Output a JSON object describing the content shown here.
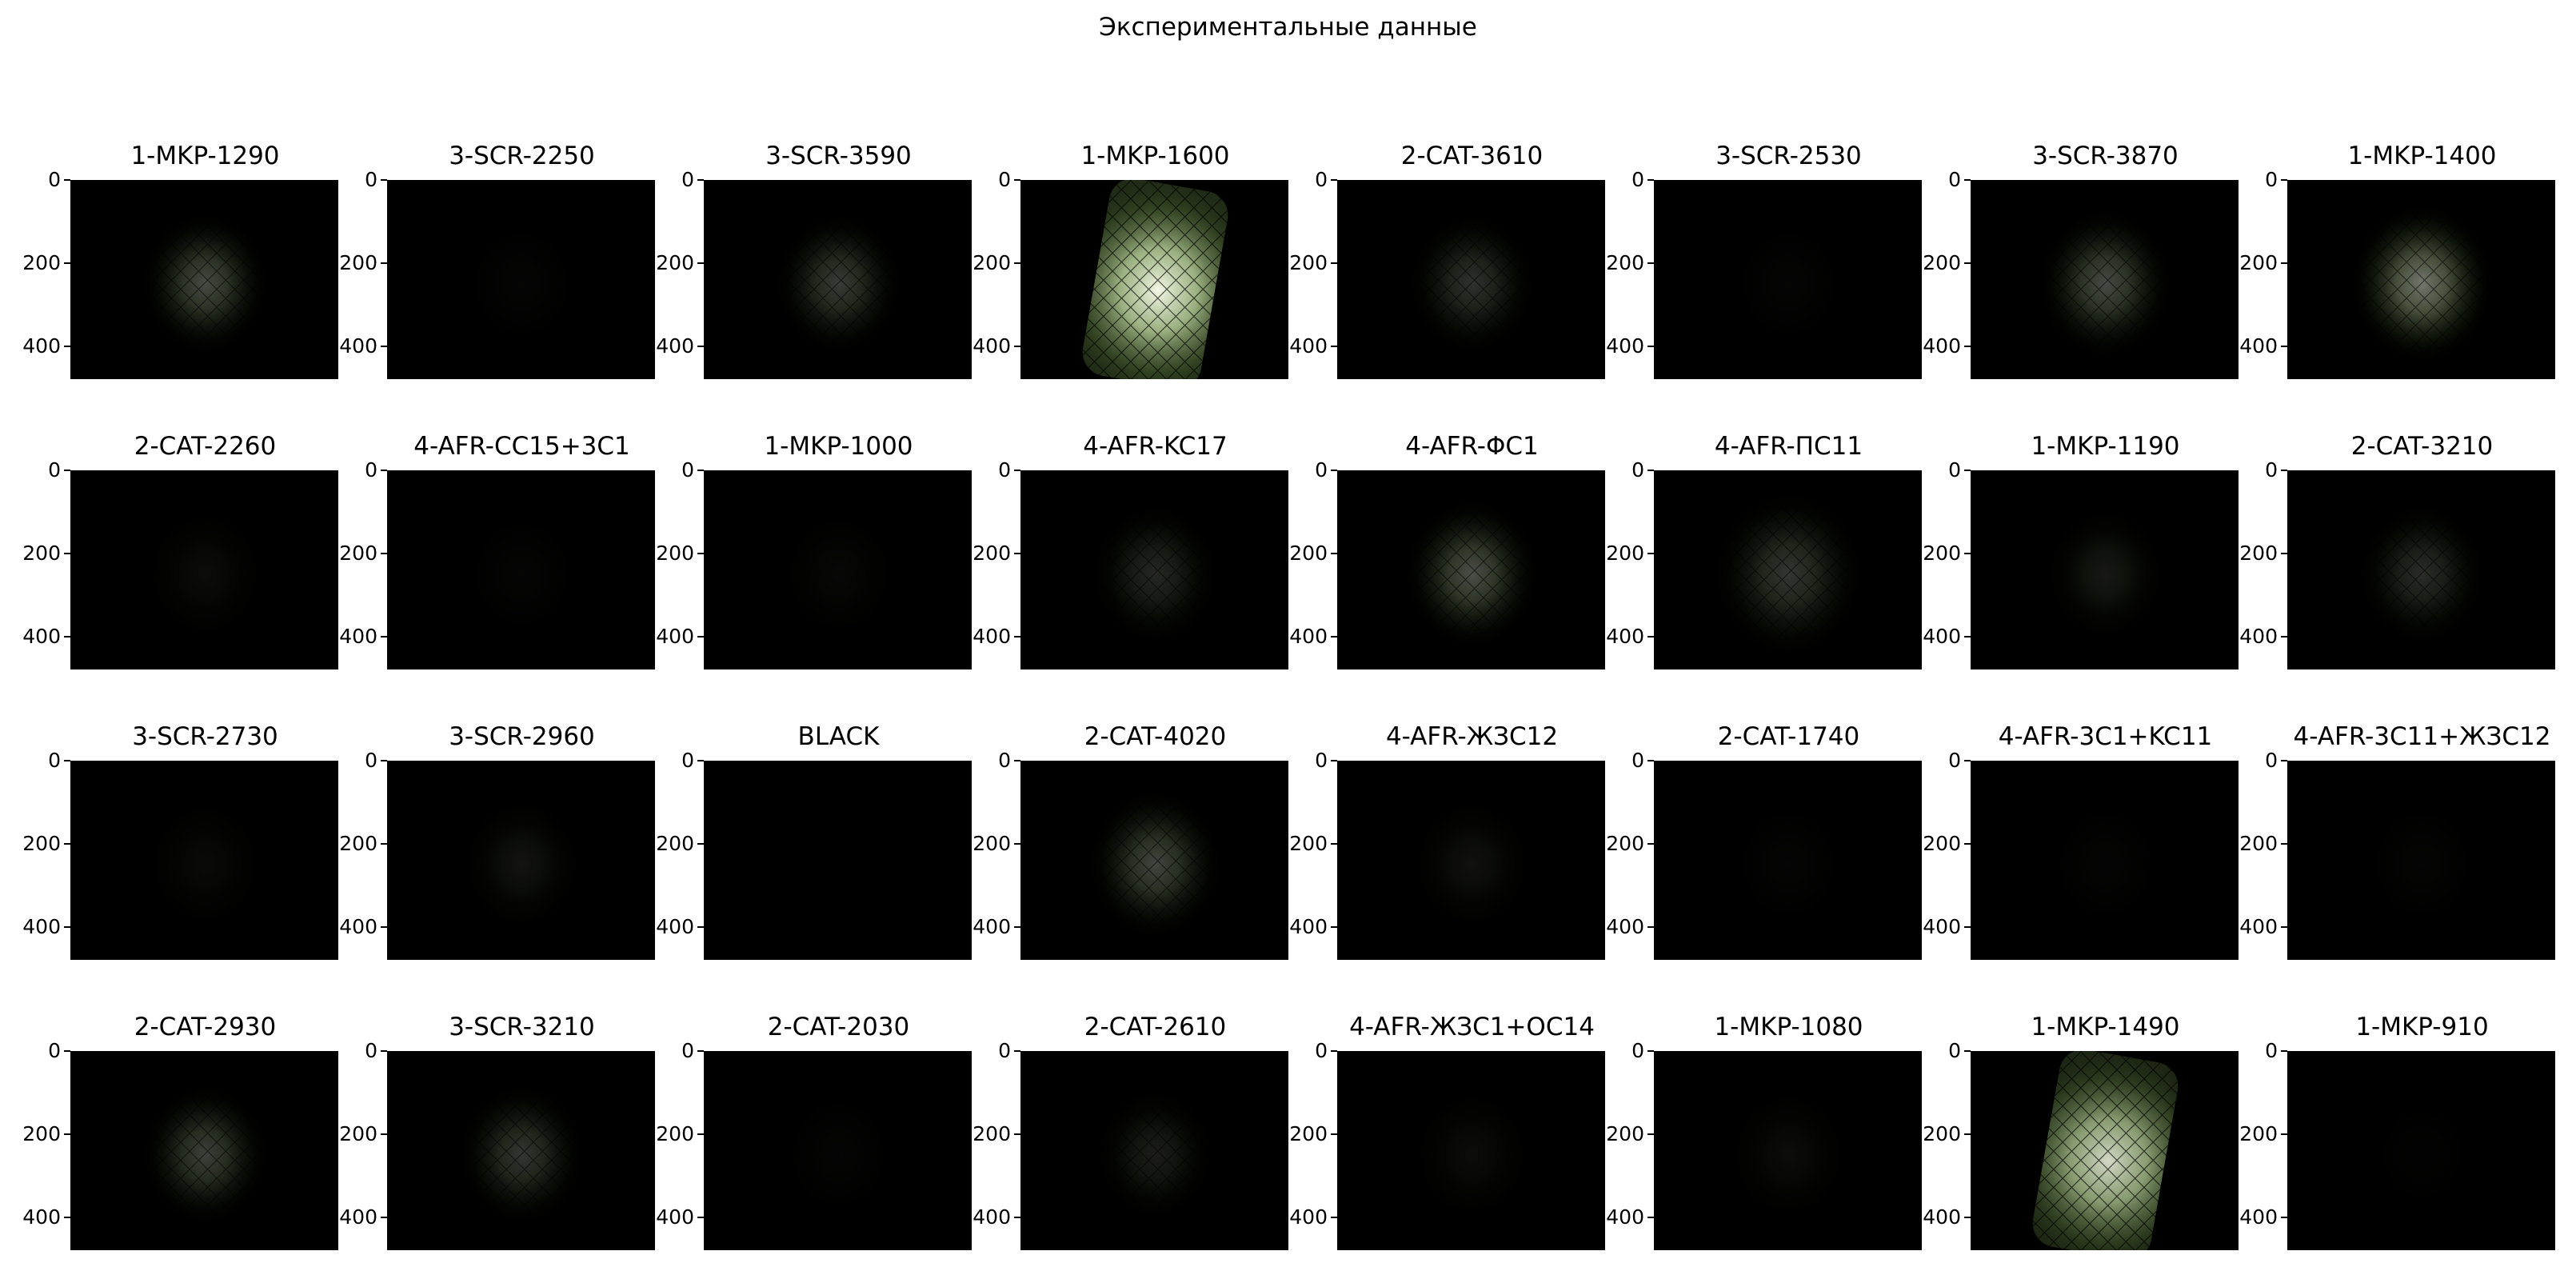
{
  "chart_data": {
    "type": "image-grid",
    "title": "Экспериментальные данные",
    "grid": {
      "rows": 4,
      "cols": 8
    },
    "y_axis": {
      "ylim": [
        480,
        0
      ],
      "ticks": [
        0,
        200,
        400
      ],
      "tick_labels": [
        "0",
        "200",
        "400"
      ]
    },
    "image_extent": {
      "x": [
        0,
        640
      ],
      "y": [
        480,
        0
      ]
    },
    "panels": [
      {
        "title": "1-MKP-1290",
        "intensity": 0.3,
        "spread": 0.85,
        "shape": "blob"
      },
      {
        "title": "3-SCR-2250",
        "intensity": 0.02,
        "spread": 0.8,
        "shape": "blob"
      },
      {
        "title": "3-SCR-3590",
        "intensity": 0.24,
        "spread": 0.85,
        "shape": "blob"
      },
      {
        "title": "1-MKP-1600",
        "intensity": 1.0,
        "spread": 1.0,
        "shape": "beam"
      },
      {
        "title": "2-CAT-3610",
        "intensity": 0.2,
        "spread": 0.85,
        "shape": "blob"
      },
      {
        "title": "3-SCR-2530",
        "intensity": 0.02,
        "spread": 0.8,
        "shape": "blob"
      },
      {
        "title": "3-SCR-3870",
        "intensity": 0.3,
        "spread": 0.9,
        "shape": "blob"
      },
      {
        "title": "1-MKP-1400",
        "intensity": 0.48,
        "spread": 0.95,
        "shape": "blob"
      },
      {
        "title": "2-CAT-2260",
        "intensity": 0.05,
        "spread": 0.8,
        "shape": "blob"
      },
      {
        "title": "4-AFR-CC15+3C1",
        "intensity": 0.02,
        "spread": 0.8,
        "shape": "blob"
      },
      {
        "title": "1-MKP-1000",
        "intensity": 0.03,
        "spread": 0.8,
        "shape": "blob"
      },
      {
        "title": "4-AFR-KC17",
        "intensity": 0.16,
        "spread": 0.85,
        "shape": "blob"
      },
      {
        "title": "4-AFR-ΦC1",
        "intensity": 0.32,
        "spread": 0.9,
        "shape": "blob"
      },
      {
        "title": "4-AFR-ПС11",
        "intensity": 0.22,
        "spread": 1.0,
        "shape": "blob"
      },
      {
        "title": "1-MKP-1190",
        "intensity": 0.1,
        "spread": 0.8,
        "shape": "blob"
      },
      {
        "title": "2-CAT-3210",
        "intensity": 0.18,
        "spread": 0.85,
        "shape": "blob"
      },
      {
        "title": "3-SCR-2730",
        "intensity": 0.04,
        "spread": 0.8,
        "shape": "blob"
      },
      {
        "title": "3-SCR-2960",
        "intensity": 0.08,
        "spread": 0.8,
        "shape": "blob"
      },
      {
        "title": "BLACK",
        "intensity": 0.0,
        "spread": 0.8,
        "shape": "blob"
      },
      {
        "title": "2-CAT-4020",
        "intensity": 0.28,
        "spread": 0.9,
        "shape": "blob"
      },
      {
        "title": "4-AFR-ЖЗС12",
        "intensity": 0.07,
        "spread": 0.8,
        "shape": "blob"
      },
      {
        "title": "2-CAT-1740",
        "intensity": 0.02,
        "spread": 0.8,
        "shape": "blob"
      },
      {
        "title": "4-AFR-3C1+KC11",
        "intensity": 0.02,
        "spread": 0.8,
        "shape": "blob"
      },
      {
        "title": "4-AFR-3C11+ЖЗС12",
        "intensity": 0.02,
        "spread": 0.8,
        "shape": "blob"
      },
      {
        "title": "2-CAT-2930",
        "intensity": 0.26,
        "spread": 0.85,
        "shape": "blob"
      },
      {
        "title": "3-SCR-3210",
        "intensity": 0.22,
        "spread": 0.85,
        "shape": "blob"
      },
      {
        "title": "2-CAT-2030",
        "intensity": 0.02,
        "spread": 0.8,
        "shape": "blob"
      },
      {
        "title": "2-CAT-2610",
        "intensity": 0.12,
        "spread": 0.8,
        "shape": "blob"
      },
      {
        "title": "4-AFR-ЖЗС1+OC14",
        "intensity": 0.05,
        "spread": 0.8,
        "shape": "blob"
      },
      {
        "title": "1-MKP-1080",
        "intensity": 0.05,
        "spread": 0.8,
        "shape": "blob"
      },
      {
        "title": "1-MKP-1490",
        "intensity": 0.85,
        "spread": 1.0,
        "shape": "beam"
      },
      {
        "title": "1-MKP-910",
        "intensity": 0.01,
        "spread": 0.8,
        "shape": "blob"
      }
    ],
    "colors": {
      "background": "#000000",
      "glow_core": "#f2f7e6",
      "glow_mid": "#b8d09a",
      "glow_outer": "#40562c",
      "mesh": "#000000"
    }
  }
}
